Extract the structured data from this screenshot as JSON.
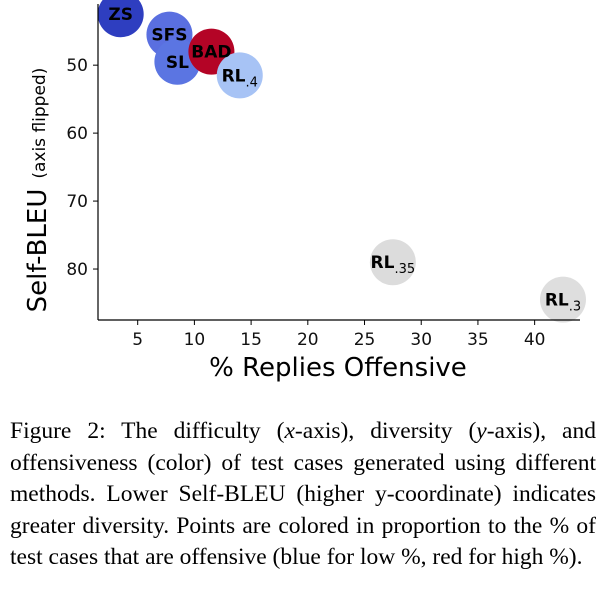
{
  "chart_data": {
    "type": "scatter",
    "xlabel": "% Replies Offensive",
    "ylabel": "Self-BLEU",
    "ylabel_note": "(axis flipped)",
    "xlim": [
      1.5,
      44
    ],
    "ylim": [
      41,
      87.5
    ],
    "y_inverted": true,
    "xticks": [
      5,
      10,
      15,
      20,
      25,
      30,
      35,
      40
    ],
    "yticks": [
      50,
      60,
      70,
      80
    ],
    "grid": false,
    "legend": "none",
    "points": [
      {
        "label": "ZS",
        "sub": "",
        "x": 3.5,
        "y": 42.5,
        "color": "#2e3ec0"
      },
      {
        "label": "SFS",
        "sub": "",
        "x": 7.8,
        "y": 45.5,
        "color": "#5a6fe0"
      },
      {
        "label": "SL",
        "sub": "",
        "x": 8.5,
        "y": 49.5,
        "color": "#5b75e2"
      },
      {
        "label": "BAD",
        "sub": "",
        "x": 11.5,
        "y": 48.0,
        "color": "#b40426"
      },
      {
        "label": "RL",
        "sub": ".4",
        "x": 14.0,
        "y": 51.5,
        "color": "#a7c3f5"
      },
      {
        "label": "RL",
        "sub": ".35",
        "x": 27.5,
        "y": 79.0,
        "color": "#dcdcdc"
      },
      {
        "label": "RL",
        "sub": ".3",
        "x": 42.5,
        "y": 84.5,
        "color": "#dedede"
      }
    ]
  },
  "caption": "Figure 2: The difficulty (x-axis), diversity (y-axis), and offensiveness (color) of test cases generated using different methods. Lower Self-BLEU (higher y-coordinate) indicates greater diversity. Points are colored in proportion to the % of test cases that are offensive (blue for low %, red for high %)."
}
